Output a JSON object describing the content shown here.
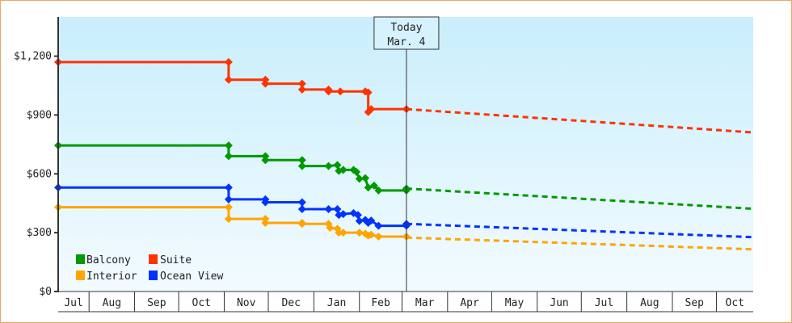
{
  "chart_data": {
    "type": "line",
    "title": "",
    "xlabel": "",
    "ylabel": "",
    "ylim": [
      0,
      1400
    ],
    "y_ticks": [
      "$0",
      "$300",
      "$600",
      "$900",
      "$1,200"
    ],
    "y_tick_values": [
      0,
      300,
      600,
      900,
      1200
    ],
    "x_range": [
      "Jul 11",
      "Oct 26"
    ],
    "x_months": [
      "Jul",
      "Aug",
      "Sep",
      "Oct",
      "Nov",
      "Dec",
      "Jan",
      "Feb",
      "Mar",
      "Apr",
      "May",
      "Jun",
      "Jul",
      "Aug",
      "Sep",
      "Oct"
    ],
    "today": {
      "line1": "Today",
      "line2": "Mar. 4",
      "date": "Mar 4"
    },
    "grid": false,
    "legend_position": "bottom-left",
    "background": {
      "top": "#c9eefc",
      "bottom": "#f3fbff"
    },
    "series": [
      {
        "name": "Balcony",
        "color": "#009900",
        "history": [
          [
            "Jul 11",
            745
          ],
          [
            "Nov 4",
            745
          ],
          [
            "Nov 4",
            690
          ],
          [
            "Nov 29",
            690
          ],
          [
            "Nov 29",
            670
          ],
          [
            "Dec 24",
            670
          ],
          [
            "Dec 24",
            640
          ],
          [
            "Jan 11",
            640
          ],
          [
            "Jan 17",
            645
          ],
          [
            "Jan 18",
            615
          ],
          [
            "Jan 21",
            620
          ],
          [
            "Jan 28",
            620
          ],
          [
            "Jan 30",
            610
          ],
          [
            "Feb 1",
            575
          ],
          [
            "Feb 5",
            578
          ],
          [
            "Feb 7",
            530
          ],
          [
            "Feb 11",
            540
          ],
          [
            "Feb 14",
            515
          ],
          [
            "Mar 4",
            515
          ],
          [
            "Mar 4",
            525
          ]
        ],
        "forecast": [
          [
            "Mar 4",
            525
          ],
          [
            "Oct 26",
            422
          ]
        ]
      },
      {
        "name": "Suite",
        "color": "#ff3300",
        "history": [
          [
            "Jul 11",
            1170
          ],
          [
            "Nov 4",
            1170
          ],
          [
            "Nov 4",
            1080
          ],
          [
            "Nov 29",
            1080
          ],
          [
            "Nov 29",
            1060
          ],
          [
            "Dec 24",
            1060
          ],
          [
            "Dec 24",
            1030
          ],
          [
            "Jan 11",
            1030
          ],
          [
            "Jan 11",
            1020
          ],
          [
            "Jan 19",
            1020
          ],
          [
            "Feb 5",
            1020
          ],
          [
            "Feb 7",
            1015
          ],
          [
            "Feb 7",
            915
          ],
          [
            "Feb 9",
            930
          ],
          [
            "Mar 4",
            930
          ]
        ],
        "forecast": [
          [
            "Mar 4",
            930
          ],
          [
            "Oct 26",
            811
          ]
        ]
      },
      {
        "name": "Interior",
        "color": "#ffa500",
        "history": [
          [
            "Jul 11",
            430
          ],
          [
            "Nov 4",
            430
          ],
          [
            "Nov 4",
            370
          ],
          [
            "Nov 29",
            370
          ],
          [
            "Nov 29",
            350
          ],
          [
            "Dec 24",
            350
          ],
          [
            "Dec 24",
            345
          ],
          [
            "Jan 11",
            345
          ],
          [
            "Jan 12",
            325
          ],
          [
            "Jan 17",
            320
          ],
          [
            "Jan 18",
            300
          ],
          [
            "Jan 21",
            300
          ],
          [
            "Feb 1",
            300
          ],
          [
            "Feb 5",
            295
          ],
          [
            "Feb 7",
            285
          ],
          [
            "Feb 9",
            290
          ],
          [
            "Feb 14",
            280
          ],
          [
            "Mar 4",
            280
          ]
        ],
        "forecast": [
          [
            "Mar 4",
            275
          ],
          [
            "Oct 26",
            215
          ]
        ]
      },
      {
        "name": "Ocean View",
        "color": "#0033ff",
        "history": [
          [
            "Jul 11",
            530
          ],
          [
            "Nov 4",
            530
          ],
          [
            "Nov 4",
            470
          ],
          [
            "Nov 29",
            470
          ],
          [
            "Nov 29",
            455
          ],
          [
            "Dec 24",
            455
          ],
          [
            "Dec 24",
            420
          ],
          [
            "Jan 11",
            420
          ],
          [
            "Jan 17",
            420
          ],
          [
            "Jan 18",
            390
          ],
          [
            "Jan 21",
            395
          ],
          [
            "Jan 28",
            400
          ],
          [
            "Jan 31",
            390
          ],
          [
            "Feb 1",
            360
          ],
          [
            "Feb 5",
            365
          ],
          [
            "Feb 7",
            350
          ],
          [
            "Feb 9",
            362
          ],
          [
            "Feb 14",
            335
          ],
          [
            "Mar 4",
            335
          ],
          [
            "Mar 4",
            345
          ]
        ],
        "forecast": [
          [
            "Mar 4",
            345
          ],
          [
            "Oct 26",
            277
          ]
        ]
      }
    ]
  }
}
